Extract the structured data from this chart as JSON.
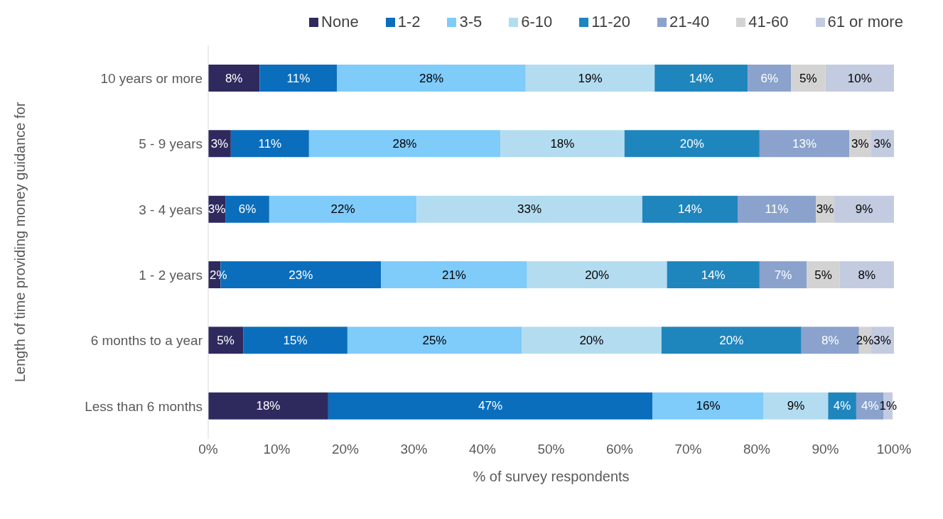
{
  "chart_data": {
    "type": "bar",
    "orientation": "horizontal",
    "stacked": true,
    "categories": [
      "10 years or more",
      "5 - 9 years",
      "3 - 4 years",
      "1 - 2 years",
      "6 months to a year",
      "Less than 6 months"
    ],
    "series": [
      {
        "name": "None",
        "color": "#2e2a5e",
        "values": [
          7.5,
          3.3,
          2.5,
          1.8,
          5.1,
          17.5
        ],
        "value_labels": [
          "8%",
          "3%",
          "3%",
          "2%",
          "5%",
          "18%"
        ]
      },
      {
        "name": "1-2",
        "color": "#0a6ebd",
        "values": [
          11.3,
          11.4,
          6.4,
          23.4,
          15.2,
          47.3
        ],
        "value_labels": [
          "11%",
          "11%",
          "6%",
          "23%",
          "15%",
          "47%"
        ]
      },
      {
        "name": "3-5",
        "color": "#7fcbfa",
        "values": [
          27.5,
          27.9,
          21.5,
          21.3,
          25.4,
          16.2
        ],
        "value_labels": [
          "28%",
          "28%",
          "22%",
          "21%",
          "25%",
          "16%"
        ]
      },
      {
        "name": "6-10",
        "color": "#b4dcf0",
        "values": [
          18.8,
          18.1,
          32.9,
          20.4,
          20.4,
          9.4
        ],
        "value_labels": [
          "19%",
          "18%",
          "33%",
          "20%",
          "20%",
          "9%"
        ]
      },
      {
        "name": "11-20",
        "color": "#1f85bd",
        "values": [
          13.6,
          19.7,
          13.9,
          13.5,
          20.4,
          4.1
        ],
        "value_labels": [
          "14%",
          "20%",
          "14%",
          "14%",
          "20%",
          "4%"
        ]
      },
      {
        "name": "21-40",
        "color": "#8aa2cc",
        "values": [
          6.3,
          13.1,
          11.4,
          6.9,
          8.4,
          4.0
        ],
        "value_labels": [
          "6%",
          "13%",
          "11%",
          "7%",
          "8%",
          "4%"
        ]
      },
      {
        "name": "41-60",
        "color": "#d3d3d3",
        "values": [
          5.0,
          3.1,
          2.7,
          4.8,
          1.7,
          0
        ],
        "value_labels": [
          "5%",
          "3%",
          "3%",
          "5%",
          "2%",
          null
        ]
      },
      {
        "name": "61 or more",
        "color": "#c3cbe0",
        "values": [
          10.0,
          3.4,
          8.7,
          7.9,
          3.4,
          1.3
        ],
        "value_labels": [
          "10%",
          "3%",
          "9%",
          "8%",
          "3%",
          "1%"
        ]
      }
    ],
    "xlim": [
      0,
      100
    ],
    "xticks": [
      {
        "value": 0,
        "label": "0%"
      },
      {
        "value": 10,
        "label": "10%"
      },
      {
        "value": 20,
        "label": "20%"
      },
      {
        "value": 30,
        "label": "30%"
      },
      {
        "value": 40,
        "label": "40%"
      },
      {
        "value": 50,
        "label": "50%"
      },
      {
        "value": 60,
        "label": "60%"
      },
      {
        "value": 70,
        "label": "70%"
      },
      {
        "value": 80,
        "label": "80%"
      },
      {
        "value": 90,
        "label": "90%"
      },
      {
        "value": 100,
        "label": "100%"
      }
    ],
    "xlabel": "% of survey respondents",
    "ylabel": "Length of time providing money guidance for",
    "legend": "top",
    "grid": false
  }
}
